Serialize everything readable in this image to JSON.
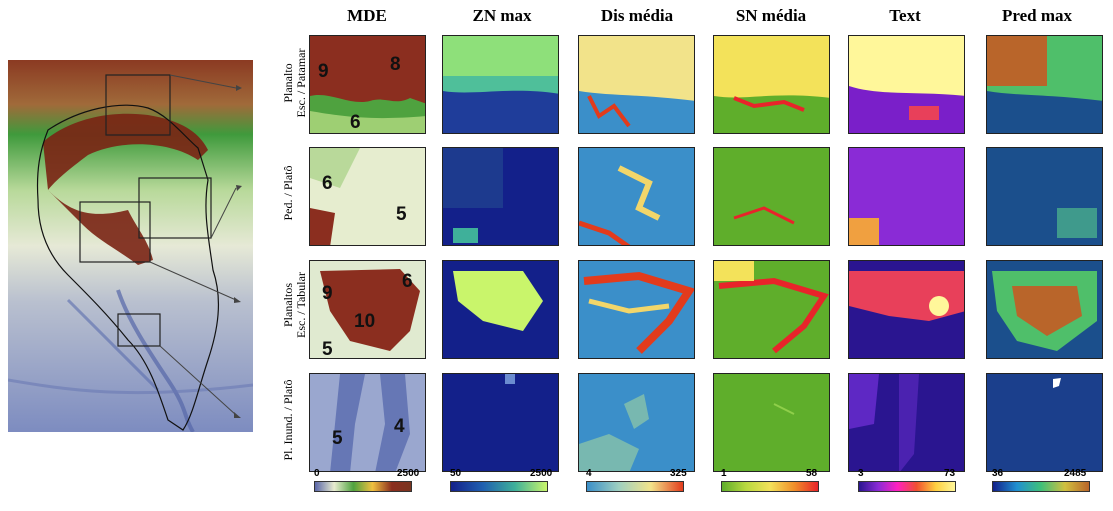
{
  "columns": [
    "MDE",
    "ZN max",
    "Dis média",
    "SN média",
    "Text",
    "Pred max"
  ],
  "rows": [
    [
      "Planalto",
      "Esc. / Patamar"
    ],
    [
      "Ped. / Platô"
    ],
    [
      "Planaltos",
      "Esc. / Tabular"
    ],
    [
      "Pl. Inund. / Platô"
    ]
  ],
  "tile_numbers": {
    "row1": [
      "9",
      "8",
      "6"
    ],
    "row2": [
      "6",
      "5"
    ],
    "row3": [
      "9",
      "6",
      "10",
      "5"
    ],
    "row4": [
      "5",
      "4"
    ]
  },
  "scales": [
    {
      "min": "0",
      "max": "2500"
    },
    {
      "min": "50",
      "max": "2500"
    },
    {
      "min": "4",
      "max": "325"
    },
    {
      "min": "1",
      "max": "58"
    },
    {
      "min": "3",
      "max": "73"
    },
    {
      "min": "36",
      "max": "2485"
    }
  ],
  "colors": {
    "mde_high": "#8b2e1f",
    "mde_mid": "#3f9a3c",
    "mde_low": "#e9eedb",
    "zn_low": "#13208a",
    "zn_high": "#c9f56b",
    "dis_base": "#3b8fc9",
    "dis_hot": "#e23b1c",
    "sn_base": "#5fae2b",
    "sn_hot": "#e8242a",
    "text_low": "#2a1590",
    "text_high": "#fff79a",
    "pred_low": "#1b4f8c",
    "pred_high": "#b9652a"
  }
}
